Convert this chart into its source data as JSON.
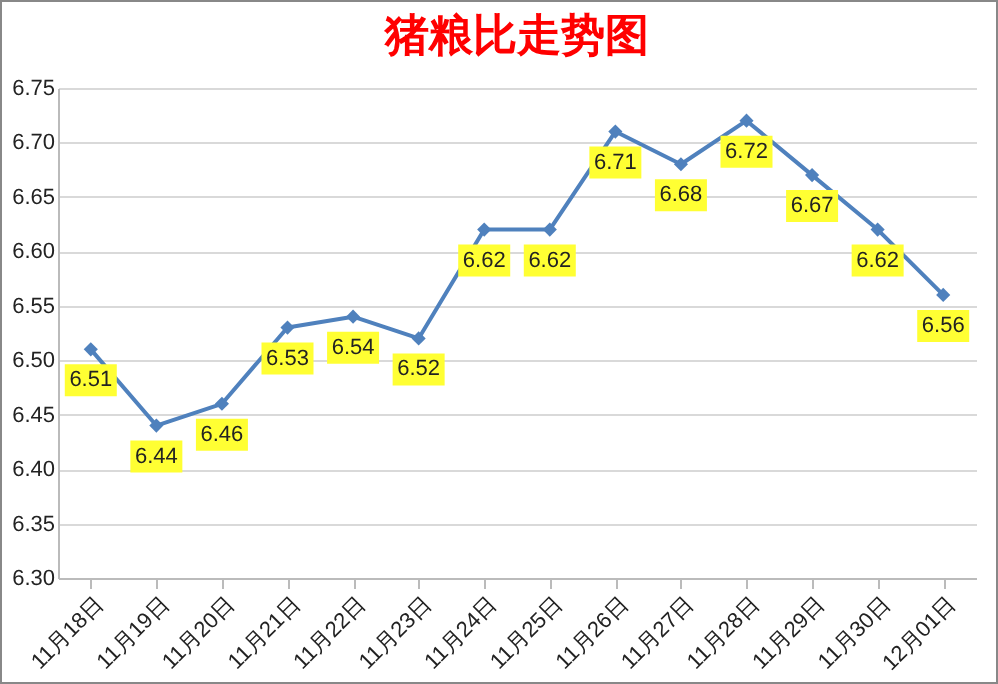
{
  "chart_data": {
    "type": "line",
    "title": "猪粮比走势图",
    "categories": [
      "11月18日",
      "11月19日",
      "11月20日",
      "11月21日",
      "11月22日",
      "11月23日",
      "11月24日",
      "11月25日",
      "11月26日",
      "11月27日",
      "11月28日",
      "11月29日",
      "11月30日",
      "12月01日"
    ],
    "series": [
      {
        "color": "#4f81bd",
        "values": [
          6.51,
          6.44,
          6.46,
          6.53,
          6.54,
          6.52,
          6.62,
          6.62,
          6.71,
          6.68,
          6.72,
          6.67,
          6.62,
          6.56
        ]
      }
    ],
    "ylim": [
      6.3,
      6.75
    ],
    "yticks": [
      {
        "value": 6.3,
        "label": "6.30"
      },
      6.35,
      {
        "value": 6.4,
        "label": "6.40"
      },
      6.45,
      {
        "value": 6.5,
        "label": "6.50"
      },
      6.55,
      {
        "value": 6.6,
        "label": "6.60"
      },
      6.65,
      {
        "value": 6.7,
        "label": "6.70"
      },
      6.75
    ],
    "grid": "y",
    "marker": "diamond",
    "data_labels": true
  }
}
